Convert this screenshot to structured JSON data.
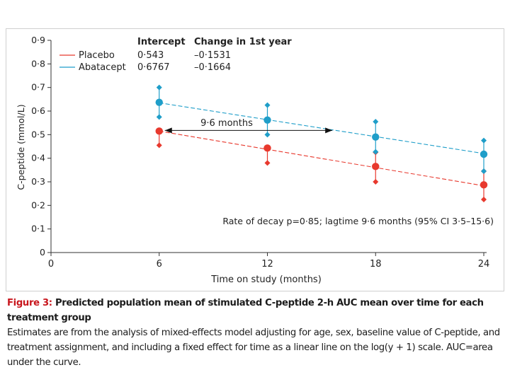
{
  "chart_data": {
    "type": "line",
    "xlabel": "Time on study (months)",
    "ylabel": "C-peptide (mmol/L)",
    "xlim": [
      0,
      24
    ],
    "ylim": [
      0,
      0.9
    ],
    "xticks": [
      0,
      6,
      12,
      18,
      24
    ],
    "xtick_labels": [
      "0",
      "6",
      "12",
      "18",
      "24"
    ],
    "yticks": [
      0,
      0.1,
      0.2,
      0.3,
      0.4,
      0.5,
      0.6,
      0.7,
      0.8,
      0.9
    ],
    "ytick_labels": [
      "0",
      "0·1",
      "0·2",
      "0·3",
      "0·4",
      "0·5",
      "0·6",
      "0·7",
      "0·8",
      "0·9"
    ],
    "legend_headers": {
      "intercept": "Intercept",
      "change": "Change in 1st year"
    },
    "series": [
      {
        "name": "Placebo",
        "color": "#e8392e",
        "intercept": "0·543",
        "change": "–0·1531",
        "line_start": [
          6,
          0.515
        ],
        "line_end": [
          24,
          0.283
        ],
        "points": [
          {
            "x": 6,
            "mean": 0.515,
            "lower": 0.455,
            "upper": null
          },
          {
            "x": 12,
            "mean": 0.443,
            "lower": 0.38,
            "upper": null
          },
          {
            "x": 18,
            "mean": 0.365,
            "lower": 0.3,
            "upper": 0.425
          },
          {
            "x": 24,
            "mean": 0.287,
            "lower": 0.225,
            "upper": 0.345
          }
        ]
      },
      {
        "name": "Abatacept",
        "color": "#1f9ec9",
        "intercept": "0·6767",
        "change": "–0·1664",
        "line_start": [
          6,
          0.635
        ],
        "line_end": [
          24,
          0.42
        ],
        "points": [
          {
            "x": 6,
            "mean": 0.637,
            "lower": 0.575,
            "upper": 0.7
          },
          {
            "x": 12,
            "mean": 0.562,
            "lower": 0.5,
            "upper": 0.625
          },
          {
            "x": 18,
            "mean": 0.49,
            "lower": 0.427,
            "upper": 0.555
          },
          {
            "x": 24,
            "mean": 0.417,
            "lower": 0.345,
            "upper": 0.475
          }
        ]
      }
    ],
    "arrow": {
      "from": [
        6,
        0.515
      ],
      "to": [
        15.6,
        0.515
      ],
      "label": "9·6 months"
    },
    "annotation": "Rate of decay p=0·85; lagtime 9·6 months (95% CI 3·5–15·6)"
  },
  "caption": {
    "title": "Figure 3:",
    "title_rest": " Predicted population mean of stimulated C-peptide 2-h AUC mean over time for each treatment group",
    "body": "Estimates are from the analysis of mixed-effects model adjusting for age, sex, baseline value of C-peptide, and treatment assignment, and including a fixed effect for time as a linear line on the log(y + 1) scale. AUC=area under the curve."
  }
}
